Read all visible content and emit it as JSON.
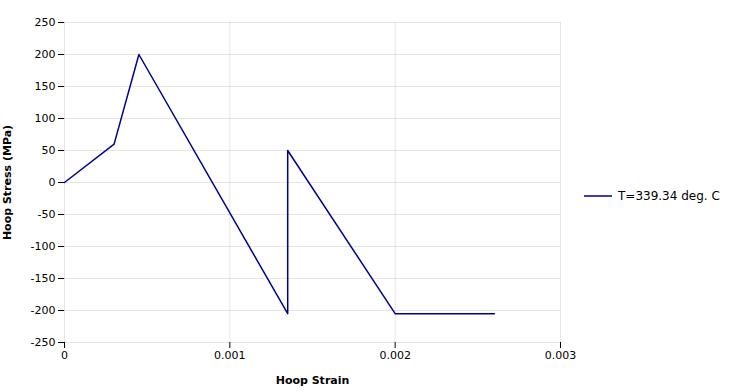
{
  "chart_data": {
    "type": "line",
    "x": [
      0,
      0.0003,
      0.00045,
      0.00135,
      0.00135,
      0.002,
      0.0026
    ],
    "series": [
      {
        "name": "T=339.34 deg. C",
        "color": "#00008B",
        "values": [
          0,
          60,
          200,
          -205,
          50,
          -205,
          -205
        ]
      }
    ],
    "xlabel": "Hoop Strain",
    "ylabel": "Hoop Stress (MPa)",
    "xlim": [
      0,
      0.003
    ],
    "ylim": [
      -250,
      250
    ],
    "xticks": [
      0,
      0.001,
      0.002,
      0.003
    ],
    "yticks": [
      -250,
      -200,
      -150,
      -100,
      -50,
      0,
      50,
      100,
      150,
      200,
      250
    ],
    "grid": true,
    "legend": "right"
  }
}
